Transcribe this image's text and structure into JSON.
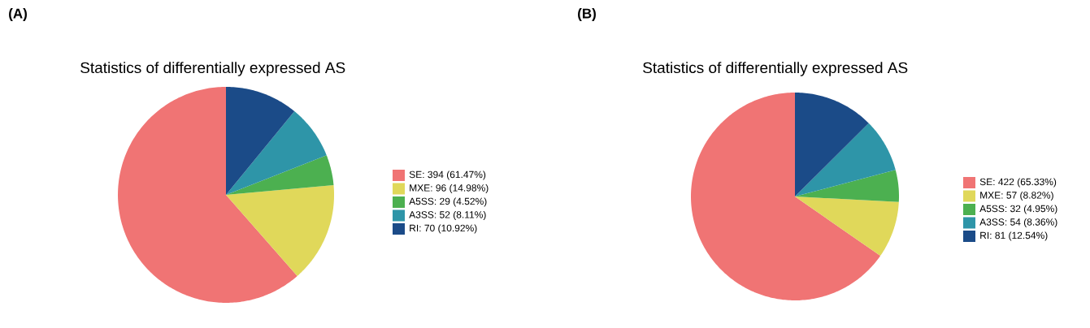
{
  "chart_data": [
    {
      "type": "pie",
      "title": "Statistics of differentially expressed AS",
      "annotations": [
        "(A)"
      ],
      "categories": [
        "SE: 394 (61.47%)",
        "MXE: 96 (14.98%)",
        "A5SS: 29 (4.52%)",
        "A3SS: 52 (8.11%)",
        "RI: 70 (10.92%)"
      ],
      "values": [
        394,
        96,
        29,
        52,
        70
      ],
      "colors": [
        "#f07474",
        "#e0d85a",
        "#4cb050",
        "#2e95a8",
        "#1b4b88"
      ],
      "legend": "right"
    },
    {
      "type": "pie",
      "title": "Statistics of differentially expressed AS",
      "annotations": [
        "(B)"
      ],
      "categories": [
        "SE: 422 (65.33%)",
        "MXE: 57 (8.82%)",
        "A5SS: 32 (4.95%)",
        "A3SS: 54 (8.36%)",
        "RI: 81 (12.54%)"
      ],
      "values": [
        422,
        57,
        32,
        54,
        81
      ],
      "colors": [
        "#f07474",
        "#e0d85a",
        "#4cb050",
        "#2e95a8",
        "#1b4b88"
      ],
      "legend": "right"
    }
  ]
}
